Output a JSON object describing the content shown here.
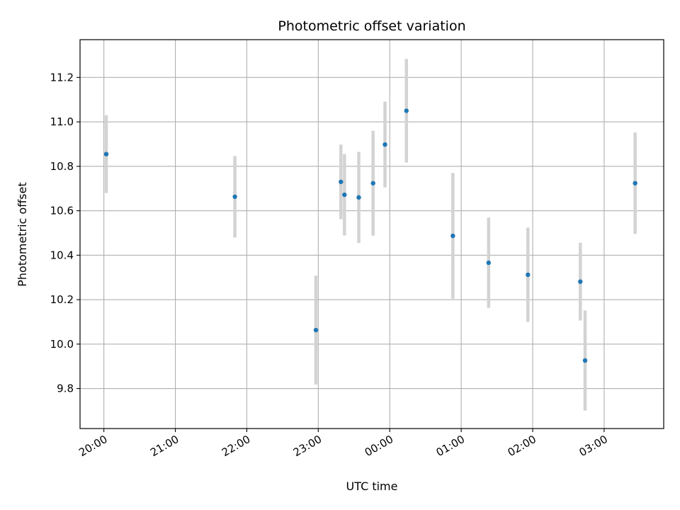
{
  "chart_data": {
    "type": "scatter",
    "title": "Photometric offset variation",
    "xlabel": "UTC time",
    "ylabel": "Photometric offset",
    "grid": true,
    "x_unit": "hours relative to 00:00 UTC",
    "xlim": [
      "19:40",
      "03:50"
    ],
    "ylim": [
      9.62,
      11.37
    ],
    "x_ticks": [
      "20:00",
      "21:00",
      "22:00",
      "23:00",
      "00:00",
      "01:00",
      "02:00",
      "03:00"
    ],
    "y_ticks": [
      "9.8",
      "10.0",
      "10.2",
      "10.4",
      "10.6",
      "10.8",
      "11.0",
      "11.2"
    ],
    "marker_color": "#1f77b4",
    "errorbar_color": "#d3d3d3",
    "points": [
      {
        "time": "20:02",
        "y": 10.855,
        "err": 0.175
      },
      {
        "time": "21:50",
        "y": 10.663,
        "err": 0.183
      },
      {
        "time": "22:58",
        "y": 10.063,
        "err": 0.245
      },
      {
        "time": "23:19",
        "y": 10.73,
        "err": 0.168
      },
      {
        "time": "23:22",
        "y": 10.672,
        "err": 0.183
      },
      {
        "time": "23:34",
        "y": 10.66,
        "err": 0.205
      },
      {
        "time": "23:46",
        "y": 10.724,
        "err": 0.236
      },
      {
        "time": "23:56",
        "y": 10.898,
        "err": 0.193
      },
      {
        "time": "00:14",
        "y": 11.05,
        "err": 0.233
      },
      {
        "time": "00:53",
        "y": 10.487,
        "err": 0.283
      },
      {
        "time": "01:23",
        "y": 10.366,
        "err": 0.203
      },
      {
        "time": "01:56",
        "y": 10.312,
        "err": 0.212
      },
      {
        "time": "02:40",
        "y": 10.281,
        "err": 0.175
      },
      {
        "time": "02:44",
        "y": 9.926,
        "err": 0.225
      },
      {
        "time": "03:26",
        "y": 10.724,
        "err": 0.228
      }
    ]
  }
}
